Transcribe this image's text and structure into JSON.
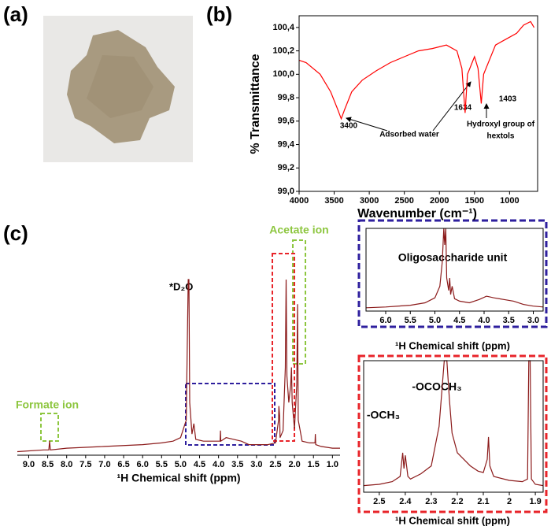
{
  "panel_labels": [
    "(a)",
    "(b)",
    "(c)"
  ],
  "chart_data": [
    {
      "type": "line",
      "y_label": "% Transmittance",
      "x_label": "Wavenumber (cm⁻¹)",
      "xlim": [
        4000,
        600
      ],
      "ylim": [
        99.0,
        100.5
      ],
      "xticks": [
        4000,
        3500,
        3000,
        2500,
        2000,
        1500,
        1000
      ],
      "yticks": [
        {
          "value": 99.0,
          "label": "99,0"
        },
        {
          "value": 99.2,
          "label": "99,2"
        },
        {
          "value": 99.4,
          "label": "99,4"
        },
        {
          "value": 99.6,
          "label": "99,6"
        },
        {
          "value": 99.8,
          "label": "99,8"
        },
        {
          "value": 100.0,
          "label": "100,0"
        },
        {
          "value": 100.2,
          "label": "100,2"
        },
        {
          "value": 100.4,
          "label": "100,4"
        }
      ],
      "annotations": [
        "3400",
        "1634",
        "1403",
        "Adsorbed water",
        "Hydroxyl group of",
        "hextols"
      ],
      "color": "#ff0000",
      "x": [
        4000,
        3900,
        3700,
        3550,
        3450,
        3400,
        3350,
        3250,
        3100,
        2900,
        2700,
        2500,
        2300,
        2100,
        1900,
        1750,
        1680,
        1634,
        1600,
        1500,
        1450,
        1403,
        1370,
        1200,
        1050,
        900,
        800,
        700,
        650
      ],
      "values": [
        100.12,
        100.1,
        100.0,
        99.85,
        99.7,
        99.62,
        99.7,
        99.85,
        99.95,
        100.03,
        100.1,
        100.15,
        100.2,
        100.22,
        100.25,
        100.2,
        100.05,
        99.67,
        100.0,
        100.15,
        100.05,
        99.75,
        100.0,
        100.25,
        100.3,
        100.35,
        100.42,
        100.45,
        100.4
      ]
    },
    {
      "type": "line",
      "x_label": "¹H Chemical shift (ppm)",
      "xlim": [
        9.3,
        0.8
      ],
      "ylim": [
        0,
        100
      ],
      "xticks": [
        {
          "value": 9,
          "label": "9.0"
        },
        8.5,
        {
          "value": 8,
          "label": "8.0"
        },
        7.5,
        {
          "value": 7,
          "label": "7.0"
        },
        6.5,
        {
          "value": 6,
          "label": "6.0"
        },
        5.5,
        {
          "value": 5,
          "label": "5.0"
        },
        4.5,
        {
          "value": 4,
          "label": "4.0"
        },
        3.5,
        {
          "value": 3,
          "label": "3.0"
        },
        2.5,
        {
          "value": 2,
          "label": "2.0"
        },
        1.5,
        {
          "value": 1,
          "label": "1.0"
        }
      ],
      "annotations": [
        "*D₂O",
        "Formate ion",
        "Acetate ion"
      ],
      "color": "#8b1a1a",
      "x": [
        9.3,
        8.6,
        8.47,
        8.45,
        8.43,
        8.0,
        7.0,
        6.0,
        5.5,
        5.2,
        5.0,
        4.85,
        4.8,
        4.78,
        4.76,
        4.7,
        4.65,
        4.6,
        4.4,
        4.2,
        3.96,
        3.95,
        3.94,
        3.8,
        3.6,
        3.4,
        3.2,
        3.0,
        2.7,
        2.5,
        2.42,
        2.41,
        2.39,
        2.38,
        2.3,
        2.24,
        2.22,
        2.2,
        2.15,
        2.1,
        2.08,
        2.06,
        2.0,
        1.94,
        1.92,
        1.9,
        1.8,
        1.6,
        1.46,
        1.45,
        1.44,
        1.3,
        1.0,
        0.8
      ],
      "values": [
        2,
        3,
        3,
        8,
        3,
        4,
        5,
        6,
        7,
        8,
        10,
        20,
        100,
        100,
        30,
        12,
        18,
        9,
        8,
        8,
        8,
        14,
        8,
        10,
        9,
        8,
        6,
        6,
        6,
        7,
        20,
        28,
        22,
        10,
        14,
        50,
        100,
        45,
        30,
        40,
        50,
        30,
        15,
        40,
        86,
        20,
        8,
        7,
        7,
        12,
        6,
        5,
        4,
        4
      ]
    },
    {
      "type": "line",
      "x_label": "¹H Chemical shift (ppm)",
      "xlim": [
        6.4,
        2.8
      ],
      "ylim": [
        0,
        100
      ],
      "xticks": [
        {
          "value": 6,
          "label": "6.0"
        },
        5.5,
        {
          "value": 5,
          "label": "5.0"
        },
        4.5,
        {
          "value": 4,
          "label": "4.0"
        },
        3.5,
        {
          "value": 3,
          "label": "3.0"
        }
      ],
      "annotations": [
        "Oligosaccharide unit"
      ],
      "color": "#8b1a1a",
      "x": [
        6.4,
        6.0,
        5.5,
        5.2,
        5.0,
        4.9,
        4.85,
        4.82,
        4.8,
        4.78,
        4.76,
        4.72,
        4.7,
        4.68,
        4.65,
        4.6,
        4.5,
        4.3,
        4.1,
        3.95,
        3.8,
        3.6,
        3.4,
        3.2,
        3.0,
        2.8
      ],
      "values": [
        4,
        5,
        7,
        10,
        16,
        30,
        60,
        100,
        80,
        100,
        40,
        25,
        40,
        20,
        30,
        15,
        12,
        10,
        14,
        18,
        16,
        14,
        12,
        8,
        6,
        5
      ]
    },
    {
      "type": "line",
      "x_label": "¹H Chemical shift (ppm)",
      "xlim": [
        2.56,
        1.87
      ],
      "ylim": [
        0,
        100
      ],
      "xticks": [
        2.5,
        2.4,
        2.3,
        2.2,
        2.1,
        2.0,
        1.9
      ],
      "annotations": [
        "-OCH₃",
        "-OCOCH₃"
      ],
      "color": "#8b1a1a",
      "x": [
        2.56,
        2.5,
        2.45,
        2.42,
        2.41,
        2.405,
        2.4,
        2.39,
        2.38,
        2.34,
        2.3,
        2.27,
        2.25,
        2.24,
        2.23,
        2.22,
        2.2,
        2.17,
        2.15,
        2.12,
        2.1,
        2.085,
        2.08,
        2.075,
        2.06,
        2.0,
        1.95,
        1.93,
        1.925,
        1.92,
        1.915,
        1.9,
        1.87
      ],
      "values": [
        5,
        6,
        8,
        12,
        30,
        18,
        28,
        12,
        10,
        14,
        20,
        50,
        100,
        100,
        70,
        45,
        30,
        24,
        20,
        16,
        15,
        25,
        42,
        20,
        12,
        9,
        8,
        10,
        100,
        100,
        10,
        6,
        5
      ]
    }
  ]
}
